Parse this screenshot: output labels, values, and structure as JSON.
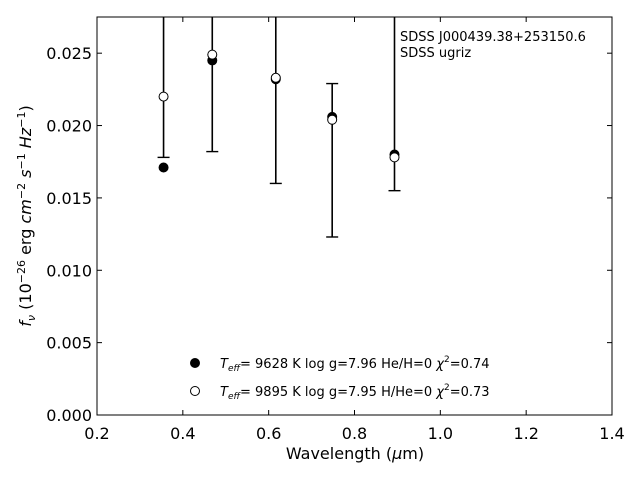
{
  "chart_data": {
    "type": "scatter",
    "xlabel": "Wavelength (μm)",
    "ylabel": "f_ν (10^-26 erg cm^-2 s^-1 Hz^-1)",
    "xlim": [
      0.2,
      1.4
    ],
    "ylim": [
      0.0,
      0.0275
    ],
    "x_ticks": [
      "0.2",
      "0.4",
      "0.6",
      "0.8",
      "1.0",
      "1.2",
      "1.4"
    ],
    "y_ticks": [
      "0.000",
      "0.005",
      "0.010",
      "0.015",
      "0.020",
      "0.025"
    ],
    "annotation": [
      "SDSS J000439.38+253150.6",
      "SDSS ugriz"
    ],
    "legend_position": "bottom-center",
    "series": [
      {
        "name": "T_eff= 9628 K  log g=7.96  He/H=0  χ²=0.74",
        "marker": "filled-circle",
        "x": [
          0.3551,
          0.4686,
          0.6166,
          0.748,
          0.8932
        ],
        "y": [
          0.0171,
          0.0245,
          0.0232,
          0.0206,
          0.018
        ]
      },
      {
        "name": "T_eff= 9895 K  log g=7.95  H/He=0  χ²=0.73",
        "marker": "open-circle",
        "x": [
          0.3551,
          0.4686,
          0.6166,
          0.748,
          0.8932
        ],
        "y": [
          0.022,
          0.0249,
          0.0233,
          0.0204,
          0.0178
        ]
      }
    ],
    "observed": {
      "x": [
        0.3551,
        0.4686,
        0.6166,
        0.748,
        0.8932
      ],
      "y_low": [
        0.0178,
        0.0182,
        0.016,
        0.0123,
        0.0155
      ],
      "y_high": [
        0.029,
        0.03,
        0.03,
        0.0229,
        0.03
      ]
    }
  },
  "legend": {
    "entries": [
      {
        "teff_sym": "T",
        "teff_sub": "eff",
        "rest": "=  9628 K  log g=7.96  He/H=0  ",
        "chi": "χ",
        "chi_sup": "2",
        "chi_val": "=0.74"
      },
      {
        "teff_sym": "T",
        "teff_sub": "eff",
        "rest": "=  9895 K  log g=7.95  H/He=0  ",
        "chi": "χ",
        "chi_sup": "2",
        "chi_val": "=0.73"
      }
    ]
  },
  "labels": {
    "xlabel_main": "Wavelength (",
    "xlabel_mu": "μ",
    "xlabel_unit": "m)",
    "ylabel_f": "f",
    "ylabel_nu": "ν",
    "ylabel_open": " (10",
    "ylabel_exp1": "−26",
    "ylabel_erg": " erg ",
    "ylabel_cm": "cm",
    "ylabel_exp2": "−2",
    "ylabel_s": " s",
    "ylabel_exp3": "−1",
    "ylabel_hz": " Hz",
    "ylabel_exp4": "−1",
    "ylabel_close": ")"
  }
}
